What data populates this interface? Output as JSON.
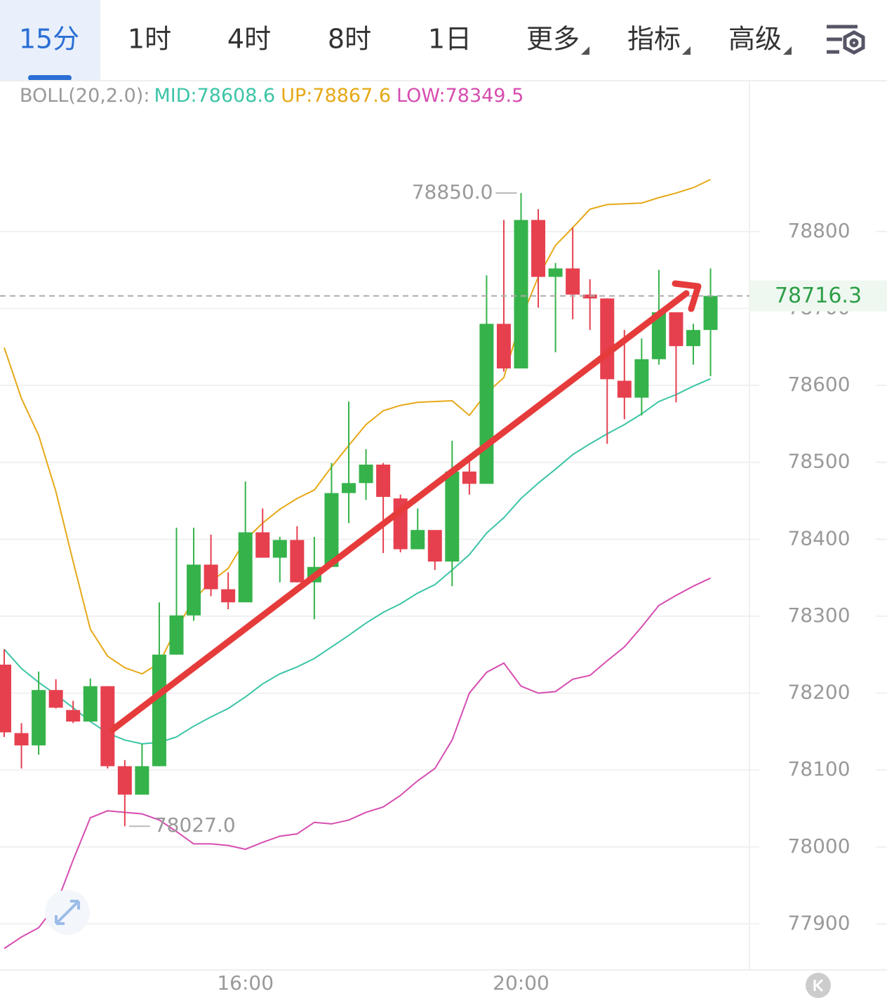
{
  "tabs": {
    "items": [
      "15分",
      "1时",
      "4时",
      "8时",
      "1日",
      "更多",
      "指标",
      "高级"
    ],
    "active": 0
  },
  "chart_data": {
    "type": "candlestick",
    "indicator": "BOLL(20,2.0):",
    "legend": [
      "MID:78608.6",
      "UP:78867.6",
      "LOW:78349.5"
    ],
    "categories": [
      null,
      null,
      null,
      null,
      null,
      null,
      null,
      null,
      null,
      null,
      null,
      null,
      null,
      null,
      "16:00",
      null,
      null,
      null,
      null,
      null,
      null,
      null,
      null,
      null,
      null,
      null,
      null,
      null,
      null,
      null,
      "20:00",
      null,
      null,
      null,
      null,
      null,
      null,
      null,
      null,
      null,
      null,
      null
    ],
    "open": [
      78237,
      78148,
      78132,
      78204,
      78178,
      78163,
      78209,
      78105,
      78068,
      78105,
      78250,
      78301,
      78367,
      78335,
      78318,
      78409,
      78376,
      78399,
      78344,
      78364,
      78460,
      78473,
      78497,
      78453,
      78387,
      78412,
      78371,
      78488,
      78472,
      78680,
      78622,
      78815,
      78741,
      78752,
      78718,
      78713,
      78606,
      78584,
      78634,
      78695,
      78651,
      78672
    ],
    "high": [
      78257,
      78161,
      78228,
      78218,
      78190,
      78219,
      78209,
      78113,
      78134,
      78318,
      78415,
      78415,
      78406,
      78357,
      78475,
      78440,
      78403,
      78417,
      78403,
      78499,
      78579,
      78517,
      78499,
      78458,
      78440,
      78412,
      78528,
      78503,
      78743,
      78815,
      78850,
      78829,
      78759,
      78805,
      78738,
      78713,
      78672,
      78661,
      78750,
      78695,
      78680,
      78752
    ],
    "low": [
      78143,
      78102,
      78120,
      78180,
      78161,
      78163,
      78102,
      78027,
      78068,
      78105,
      78250,
      78294,
      78326,
      78309,
      78318,
      78376,
      78344,
      78344,
      78296,
      78364,
      78421,
      78451,
      78382,
      78383,
      78387,
      78360,
      78339,
      78458,
      78472,
      78618,
      78622,
      78701,
      78643,
      78686,
      78672,
      78524,
      78556,
      78561,
      78627,
      78578,
      78627,
      78612
    ],
    "close": [
      78149,
      78132,
      78204,
      78181,
      78163,
      78209,
      78105,
      78068,
      78105,
      78250,
      78301,
      78367,
      78335,
      78318,
      78409,
      78376,
      78399,
      78344,
      78364,
      78460,
      78473,
      78497,
      78455,
      78387,
      78412,
      78371,
      78488,
      78472,
      78680,
      78622,
      78815,
      78741,
      78752,
      78718,
      78713,
      78608,
      78584,
      78634,
      78695,
      78651,
      78672,
      78716.3
    ],
    "up_color": "#35b34a",
    "down_color": "#e6404f",
    "series": [
      {
        "name": "MID",
        "color": "#3cc4a6",
        "values": [
          78257,
          78232,
          78214,
          78198,
          78181,
          78163,
          78148,
          78139,
          78134,
          78136,
          78143,
          78157,
          78169,
          78180,
          78195,
          78212,
          78225,
          78234,
          78245,
          78260,
          78275,
          78291,
          78305,
          78316,
          78330,
          78341,
          78360,
          78380,
          78408,
          78428,
          78453,
          78473,
          78491,
          78510,
          78524,
          78537,
          78549,
          78563,
          78579,
          78588,
          78599,
          78608.6
        ]
      },
      {
        "name": "UP",
        "color": "#e6a817",
        "values": [
          78649,
          78583,
          78535,
          78462,
          78371,
          78283,
          78248,
          78233,
          78225,
          78239,
          78284,
          78321,
          78345,
          78362,
          78399,
          78421,
          78439,
          78453,
          78464,
          78494,
          78522,
          78549,
          78567,
          78574,
          78578,
          78579,
          78580,
          78561,
          78590,
          78610,
          78686,
          78741,
          78782,
          78805,
          78829,
          78835,
          78836,
          78837,
          78844,
          78850,
          78857,
          78867.6
        ]
      },
      {
        "name": "LOW",
        "color": "#d64db0",
        "values": [
          77868,
          77883,
          77895,
          77924,
          77983,
          78038,
          78047,
          78045,
          78043,
          78035,
          78020,
          78004,
          78004,
          78002,
          77997,
          78006,
          78014,
          78017,
          78032,
          78030,
          78035,
          78045,
          78052,
          78067,
          78086,
          78102,
          78139,
          78200,
          78227,
          78239,
          78209,
          78200,
          78202,
          78218,
          78223,
          78242,
          78260,
          78286,
          78314,
          78327,
          78339,
          78349.5
        ]
      }
    ],
    "high_label": {
      "value": 78850,
      "label": "78850.0"
    },
    "low_label": {
      "value": 78027,
      "label": "78027.0"
    },
    "last_price": 78716.3,
    "ylim": [
      77842,
      78996
    ],
    "yticks": [
      77900,
      78000,
      78100,
      78200,
      78300,
      78400,
      78500,
      78600,
      78700,
      78800
    ],
    "grid": true
  }
}
